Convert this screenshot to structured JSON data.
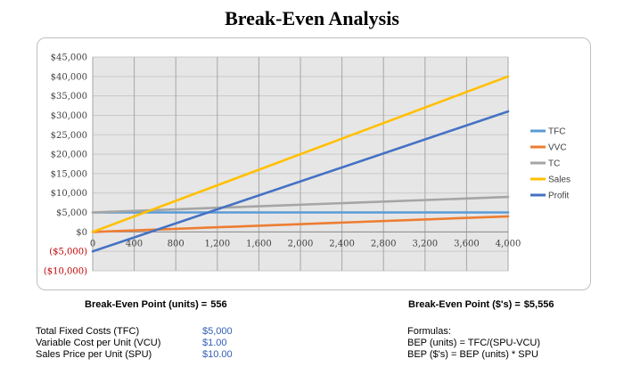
{
  "title": "Break-Even Analysis",
  "chart_data": {
    "type": "line",
    "x": [
      0,
      4000
    ],
    "xticks": [
      "0",
      "400",
      "800",
      "1,200",
      "1,600",
      "2,000",
      "2,400",
      "2,800",
      "3,200",
      "3,600",
      "4,000"
    ],
    "xlim": [
      0,
      4000
    ],
    "yticks": [
      "$45,000",
      "$40,000",
      "$35,000",
      "$30,000",
      "$25,000",
      "$20,000",
      "$15,000",
      "$10,000",
      "$5,000",
      "$0",
      "($5,000)",
      "($10,000)"
    ],
    "ylim": [
      -10000,
      45000
    ],
    "grid": true,
    "legend_position": "right",
    "series": [
      {
        "name": "TFC",
        "color": "#5b9bd5",
        "values": [
          5000,
          5000
        ]
      },
      {
        "name": "VVC",
        "color": "#ed7d31",
        "values": [
          0,
          4000
        ]
      },
      {
        "name": "TC",
        "color": "#a5a5a5",
        "values": [
          5000,
          9000
        ]
      },
      {
        "name": "Sales",
        "color": "#ffc000",
        "values": [
          0,
          40000
        ]
      },
      {
        "name": "Profit",
        "color": "#4472c4",
        "values": [
          -5000,
          31000
        ]
      }
    ]
  },
  "break_even": {
    "units_label": "Break-Even Point (units) =",
    "units_value": "556",
    "dollars_label": "Break-Even Point ($'s) =",
    "dollars_value": "$5,556"
  },
  "inputs": [
    {
      "label": "Total Fixed Costs (TFC)",
      "value": "$5,000"
    },
    {
      "label": "Variable Cost per Unit (VCU)",
      "value": "$1.00"
    },
    {
      "label": "Sales Price per Unit (SPU)",
      "value": "$10.00"
    }
  ],
  "formulas": {
    "heading": "Formulas:",
    "bep_units": "BEP (units) = TFC/(SPU-VCU)",
    "bep_dollars": "BEP ($'s) = BEP (units) * SPU"
  }
}
